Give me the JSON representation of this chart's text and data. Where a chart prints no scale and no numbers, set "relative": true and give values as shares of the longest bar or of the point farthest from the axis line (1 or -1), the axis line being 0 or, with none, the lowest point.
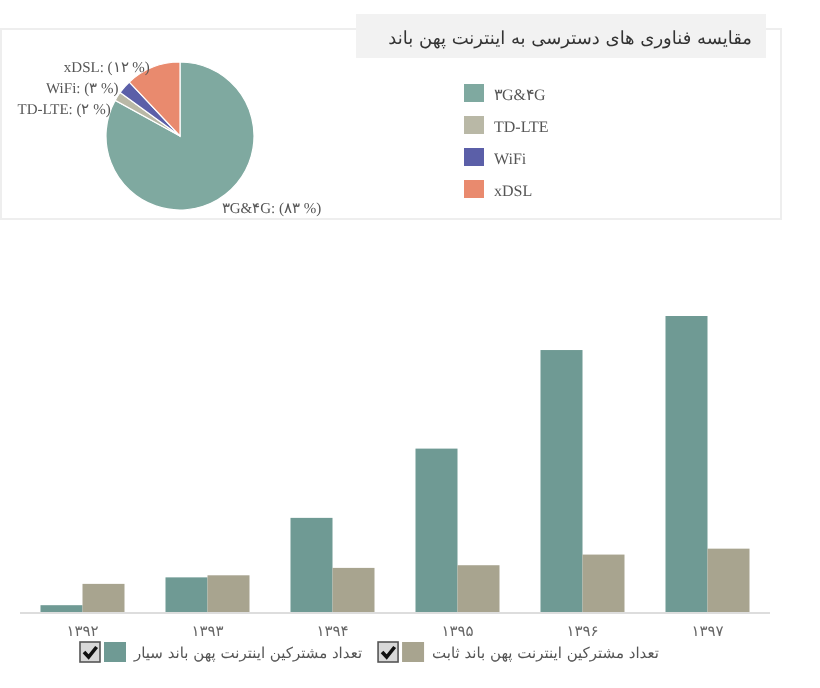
{
  "chart_data": [
    {
      "type": "pie",
      "title": "مقایسه  فناوری های دسترسی  به اینترنت پهن باند",
      "categories": [
        "۳G&۴G",
        "TD-LTE",
        "WiFi",
        "xDSL"
      ],
      "values": [
        83,
        2,
        3,
        12
      ],
      "colors": [
        "#7fa9a0",
        "#b9b8a6",
        "#5b5fa8",
        "#e98a6e"
      ],
      "value_labels": [
        "۳G&۴G: (۸۳ %)",
        "TD-LTE: (۲ %)",
        "WiFi: (۳ %)",
        "xDSL: (۱۲ %)"
      ],
      "legend": "right"
    },
    {
      "type": "bar",
      "relative": true,
      "categories": [
        "۱۳۹۲",
        "۱۳۹۳",
        "۱۳۹۴",
        "۱۳۹۵",
        "۱۳۹۶",
        "۱۳۹۷"
      ],
      "legend": "bottom",
      "series": [
        {
          "name": "تعداد مشترکین اینترنت پهن باند سیار",
          "color": "#6f9a94",
          "values": [
            0.023,
            0.117,
            0.318,
            0.552,
            0.885,
            1
          ]
        },
        {
          "name": "تعداد مشترکین اینترنت پهن باند ثابت",
          "color": "#a8a48f",
          "values": [
            0.095,
            0.124,
            0.149,
            0.158,
            0.194,
            0.214
          ]
        }
      ]
    }
  ]
}
